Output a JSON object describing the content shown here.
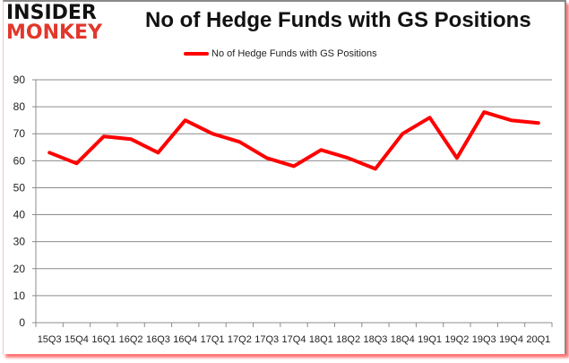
{
  "logo": {
    "line1": "INSIDER",
    "line2": "MONKEY"
  },
  "chart_data": {
    "type": "line",
    "title": "No of Hedge Funds with GS Positions",
    "xlabel": "",
    "ylabel": "",
    "categories": [
      "15Q3",
      "15Q4",
      "16Q1",
      "16Q2",
      "16Q3",
      "16Q4",
      "17Q1",
      "17Q2",
      "17Q3",
      "17Q4",
      "18Q1",
      "18Q2",
      "18Q3",
      "18Q4",
      "19Q1",
      "19Q2",
      "19Q3",
      "19Q4",
      "20Q1"
    ],
    "series": [
      {
        "name": "No of Hedge Funds with GS Positions",
        "color": "#ff0000",
        "values": [
          63,
          59,
          69,
          68,
          63,
          75,
          70,
          67,
          61,
          58,
          64,
          61,
          57,
          70,
          76,
          61,
          78,
          75,
          74
        ]
      }
    ],
    "ylim": [
      0,
      90
    ],
    "yticks": [
      0,
      10,
      20,
      30,
      40,
      50,
      60,
      70,
      80,
      90
    ],
    "grid": true,
    "legend_position": "top"
  }
}
